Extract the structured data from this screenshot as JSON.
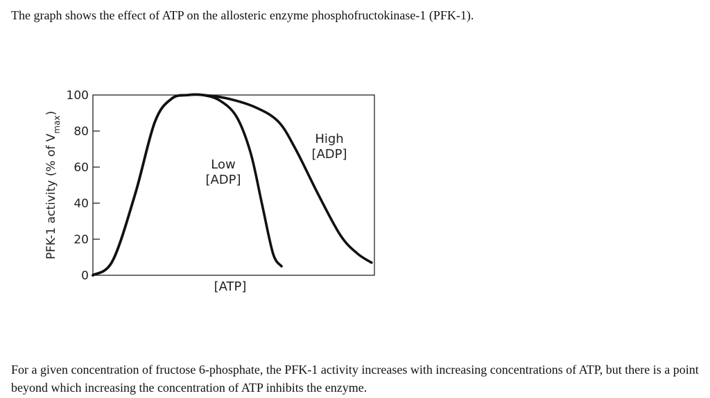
{
  "intro_text": "The graph shows the effect of ATP on the allosteric enzyme phosphofructokinase-1 (PFK-1).",
  "outro_text": "For a given concentration of fructose 6-phosphate, the PFK-1 activity increases with increasing concentrations of ATP, but there is a point beyond which increasing the concentration of ATP inhibits the enzyme.",
  "chart_data": {
    "type": "line",
    "title": "",
    "xlabel": "[ATP]",
    "ylabel_main": "PFK-1 activity (% of V",
    "ylabel_sub": "max",
    "ylabel_close": ")",
    "ylim": [
      0,
      100
    ],
    "yticks": [
      0,
      20,
      40,
      60,
      80,
      100
    ],
    "grid": false,
    "series": [
      {
        "label_lines": [
          "Low",
          "[ADP]"
        ],
        "x": [
          0.0,
          0.07,
          0.15,
          0.22,
          0.28,
          0.34,
          0.39,
          0.45,
          0.51,
          0.56,
          0.6,
          0.64,
          0.67
        ],
        "y": [
          0,
          8,
          45,
          85,
          98,
          100,
          100,
          97,
          88,
          68,
          40,
          12,
          5
        ]
      },
      {
        "label_lines": [
          "High",
          "[ADP]"
        ],
        "x": [
          0.0,
          0.07,
          0.15,
          0.22,
          0.28,
          0.34,
          0.39,
          0.48,
          0.58,
          0.66,
          0.72,
          0.8,
          0.88,
          0.94,
          0.99
        ],
        "y": [
          0,
          8,
          45,
          85,
          98,
          100,
          100,
          98,
          93,
          85,
          70,
          45,
          22,
          12,
          7
        ]
      }
    ]
  }
}
